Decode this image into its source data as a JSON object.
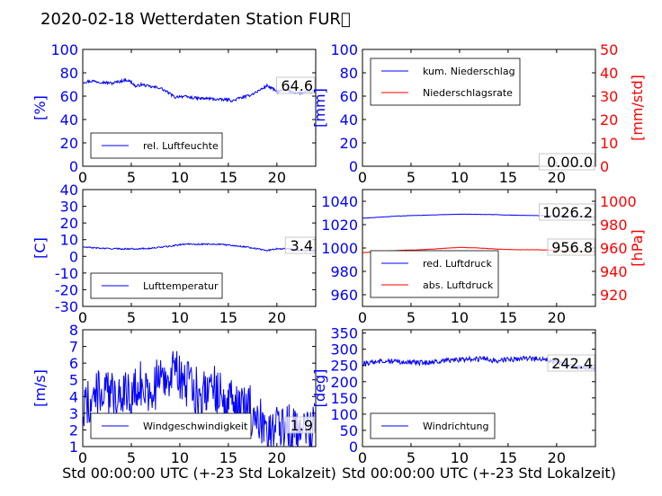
{
  "figure": {
    "title": "2020-02-18 Wetterdaten Station FUR\u0000",
    "xlabel": "Std 00:00:00 UTC (+-23 Std Lokalzeit)"
  },
  "colors": {
    "left_axis": "#0000ff",
    "right_axis": "#ff0000",
    "frame": "#000000"
  },
  "chart_data": [
    {
      "id": "humidity",
      "type": "line",
      "xlim": [
        0,
        24
      ],
      "ylim": [
        0,
        100
      ],
      "xticks": [
        0,
        5,
        10,
        15,
        20
      ],
      "yticks": [
        0,
        20,
        40,
        60,
        80,
        100
      ],
      "ylabel": "[%]",
      "legend": {
        "placement": "lower-left",
        "entries": [
          "rel. Luftfeuchte"
        ]
      },
      "last_value": "64.6",
      "series": [
        {
          "name": "rel. Luftfeuchte",
          "color": "#0000ff",
          "x": [
            0,
            1,
            2,
            3,
            4,
            4.5,
            5,
            5.5,
            6,
            7,
            8,
            9,
            9.5,
            10,
            11,
            12,
            13,
            14,
            15,
            15.5,
            16,
            17,
            18,
            19,
            20,
            21,
            22,
            23,
            24
          ],
          "y": [
            72,
            73,
            72,
            71,
            73,
            74,
            72,
            68,
            70,
            68,
            67,
            62,
            59,
            60,
            59,
            58,
            58,
            57,
            57,
            56,
            58,
            60,
            64,
            69,
            64,
            65,
            63,
            63,
            64
          ],
          "noise": 1.2
        }
      ]
    },
    {
      "id": "precipitation",
      "type": "line",
      "xlim": [
        0,
        24
      ],
      "ylim": [
        0,
        100
      ],
      "ylim_right": [
        0,
        50
      ],
      "xticks": [
        0,
        5,
        10,
        15,
        20
      ],
      "yticks": [
        0,
        20,
        40,
        60,
        80,
        100
      ],
      "yticks_right": [
        0,
        10,
        20,
        30,
        40,
        50
      ],
      "ylabel": "[mm]",
      "ylabel_right": "[mm/std]",
      "legend": {
        "placement": "upper-left",
        "entries": [
          "kum. Niederschlag",
          "Niederschlagsrate"
        ]
      },
      "last_value": "0.00.0",
      "series": [
        {
          "name": "kum. Niederschlag",
          "color": "#0000ff",
          "x": [
            0,
            24
          ],
          "y": [
            0,
            0
          ],
          "noise": 0
        },
        {
          "name": "Niederschlagsrate",
          "color": "#ff0000",
          "axis": "right",
          "x": [
            0,
            24
          ],
          "y": [
            0,
            0
          ],
          "noise": 0
        }
      ]
    },
    {
      "id": "temperature",
      "type": "line",
      "xlim": [
        0,
        24
      ],
      "ylim": [
        -30,
        40
      ],
      "xticks": [
        0,
        5,
        10,
        15,
        20
      ],
      "yticks": [
        -30,
        -20,
        -10,
        0,
        10,
        20,
        30,
        40
      ],
      "ylabel": "[C]",
      "legend": {
        "placement": "lower-left",
        "entries": [
          "Lufttemperatur"
        ]
      },
      "last_value": "3.4",
      "series": [
        {
          "name": "Lufttemperatur",
          "color": "#0000ff",
          "x": [
            0,
            1,
            2,
            3,
            4,
            5,
            6,
            7,
            8,
            9,
            10,
            11,
            12,
            13,
            14,
            15,
            16,
            17,
            18,
            19,
            20,
            21,
            22,
            23,
            24
          ],
          "y": [
            5.5,
            5.2,
            4.8,
            4.6,
            4.5,
            4.5,
            4.6,
            4.8,
            5.5,
            6.0,
            7.0,
            7.5,
            7.2,
            7.4,
            7.2,
            6.8,
            6.2,
            5.5,
            4.5,
            3.5,
            4.6,
            4.6,
            3.8,
            3.5,
            3.4
          ],
          "noise": 0.4
        }
      ]
    },
    {
      "id": "pressure",
      "type": "line",
      "xlim": [
        0,
        24
      ],
      "ylim": [
        950,
        1050
      ],
      "ylim_right": [
        910,
        1010
      ],
      "xticks": [
        0,
        5,
        10,
        15,
        20
      ],
      "yticks": [
        960,
        980,
        1000,
        1020,
        1040
      ],
      "yticks_right": [
        920,
        940,
        960,
        980,
        1000
      ],
      "ylabel": "",
      "ylabel_right": "[hPa]",
      "legend": {
        "placement": "lower-left",
        "entries": [
          "red. Luftdruck",
          "abs. Luftdruck"
        ]
      },
      "last_value": "1026.2",
      "last_value_2": "956.8",
      "series": [
        {
          "name": "red. Luftdruck",
          "color": "#0000ff",
          "x": [
            0,
            2,
            4,
            6,
            8,
            10,
            12,
            14,
            16,
            18,
            20,
            22,
            24
          ],
          "y": [
            1025.5,
            1026.5,
            1027.5,
            1028,
            1028.5,
            1029,
            1028.8,
            1028.5,
            1028,
            1027.8,
            1027.5,
            1026.8,
            1026.2
          ],
          "noise": 0.15
        },
        {
          "name": "abs. Luftdruck",
          "color": "#ff0000",
          "axis": "right",
          "x": [
            0,
            2,
            4,
            6,
            8,
            10,
            12,
            14,
            16,
            18,
            20,
            22,
            24
          ],
          "y": [
            956.0,
            957.0,
            958.0,
            958.5,
            959.5,
            960.5,
            960.0,
            959.0,
            958.5,
            958.5,
            958.0,
            957.3,
            956.8
          ],
          "noise": 0.15
        }
      ]
    },
    {
      "id": "wind_speed",
      "type": "line",
      "xlim": [
        0,
        24
      ],
      "ylim": [
        1,
        8
      ],
      "xticks": [
        0,
        5,
        10,
        15,
        20
      ],
      "yticks": [
        1,
        2,
        3,
        4,
        5,
        6,
        7,
        8
      ],
      "ylabel": "[m/s]",
      "legend": {
        "placement": "lower-left",
        "entries": [
          "Windgeschwindigkeit"
        ]
      },
      "last_value": "1.9",
      "series": [
        {
          "name": "Windgeschwindigkeit",
          "color": "#0000ff",
          "x": [
            0,
            1,
            2,
            3,
            4,
            5,
            6,
            7,
            8,
            9,
            9.5,
            10,
            11,
            12,
            13,
            14,
            15,
            16,
            17,
            18,
            19,
            20,
            21,
            22,
            23,
            24
          ],
          "y": [
            3.2,
            4.0,
            4.3,
            4.0,
            4.5,
            4.0,
            4.7,
            4.3,
            5.0,
            5.5,
            5.2,
            5.3,
            4.5,
            4.2,
            4.8,
            4.0,
            3.8,
            3.0,
            3.4,
            2.5,
            2.1,
            2.4,
            2.1,
            1.9,
            2.0,
            1.9
          ],
          "noise": 1.5
        }
      ]
    },
    {
      "id": "wind_direction",
      "type": "line",
      "xlim": [
        0,
        24
      ],
      "ylim": [
        0,
        360
      ],
      "xticks": [
        0,
        5,
        10,
        15,
        20
      ],
      "yticks": [
        0,
        50,
        100,
        150,
        200,
        250,
        300,
        350
      ],
      "ylabel": "[deg]",
      "legend": {
        "placement": "lower-left",
        "entries": [
          "Windrichtung"
        ]
      },
      "last_value": "242.4",
      "series": [
        {
          "name": "Windrichtung",
          "color": "#0000ff",
          "x": [
            0,
            2,
            4,
            6,
            8,
            10,
            12,
            14,
            16,
            18,
            20,
            22,
            24
          ],
          "y": [
            255,
            265,
            262,
            258,
            262,
            268,
            270,
            265,
            270,
            272,
            262,
            245,
            242
          ],
          "noise": 8
        }
      ]
    }
  ]
}
